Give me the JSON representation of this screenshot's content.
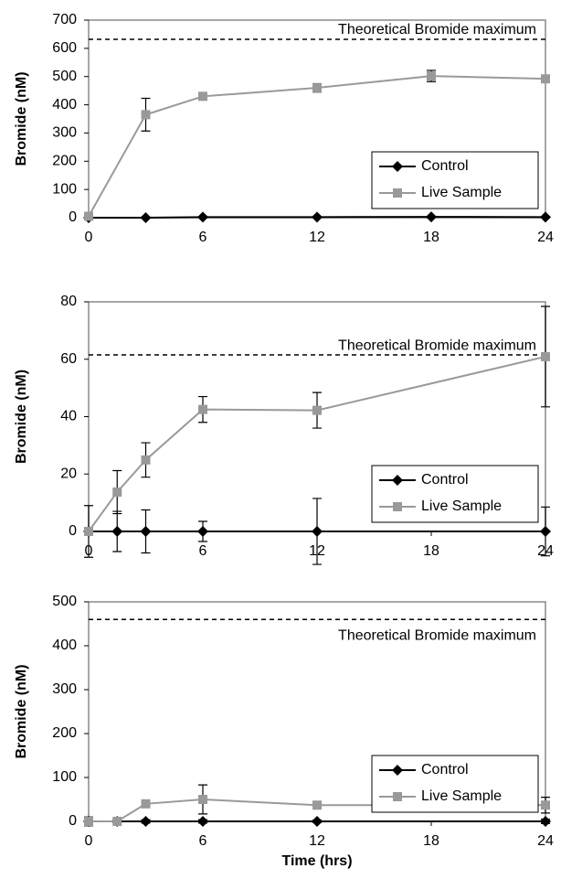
{
  "chart_data": [
    {
      "type": "line",
      "y_label": "Bromide (nM)",
      "annotation": "Theoretical Bromide maximum",
      "reference_line": 632,
      "xlim": [
        0,
        24
      ],
      "xticks": [
        0,
        6,
        12,
        18,
        24
      ],
      "ylim": [
        0,
        700
      ],
      "yticks": [
        0,
        100,
        200,
        300,
        400,
        500,
        600,
        700
      ],
      "legend": "lower right",
      "series": [
        {
          "name": "Control",
          "color": "#000000",
          "marker": "diamond",
          "x": [
            0,
            3,
            6,
            12,
            18,
            24
          ],
          "values": [
            0,
            0,
            2,
            2,
            3,
            2
          ],
          "errors": [
            2,
            2,
            2,
            2,
            2,
            2
          ]
        },
        {
          "name": "Live Sample",
          "color": "#999999",
          "marker": "square",
          "x": [
            0,
            3,
            6,
            12,
            18,
            24
          ],
          "values": [
            5,
            365,
            430,
            460,
            502,
            492
          ],
          "errors": [
            3,
            58,
            8,
            15,
            20,
            4
          ]
        }
      ]
    },
    {
      "type": "line",
      "y_label": "Bromide (nM)",
      "annotation": "Theoretical Bromide maximum",
      "reference_line": 61.5,
      "xlim": [
        0,
        24
      ],
      "xticks": [
        0,
        6,
        12,
        18,
        24
      ],
      "ylim": [
        0,
        80
      ],
      "yticks": [
        0,
        20,
        40,
        60,
        80
      ],
      "legend": "lower right",
      "series": [
        {
          "name": "Control",
          "color": "#000000",
          "marker": "diamond",
          "x": [
            0,
            1.5,
            3,
            6,
            12,
            24
          ],
          "values": [
            0,
            0,
            0,
            0,
            0,
            0
          ],
          "errors": [
            9,
            7,
            7.5,
            3.5,
            11.5,
            8.5
          ]
        },
        {
          "name": "Live Sample",
          "color": "#999999",
          "marker": "square",
          "x": [
            0,
            1.5,
            3,
            6,
            12,
            24
          ],
          "values": [
            0,
            13.7,
            24.9,
            42.5,
            42.2,
            60.9
          ],
          "errors": [
            0.5,
            7.5,
            6,
            4.5,
            6.2,
            17.5
          ]
        }
      ]
    },
    {
      "type": "line",
      "y_label": "Bromide (nM)",
      "x_label": "Time (hrs)",
      "annotation": "Theoretical Bromide maximum",
      "reference_line": 460,
      "xlim": [
        0,
        24
      ],
      "xticks": [
        0,
        6,
        12,
        18,
        24
      ],
      "ylim": [
        0,
        500
      ],
      "yticks": [
        0,
        100,
        200,
        300,
        400,
        500
      ],
      "legend": "lower right",
      "series": [
        {
          "name": "Control",
          "color": "#000000",
          "marker": "diamond",
          "x": [
            0,
            1.5,
            3,
            6,
            12,
            24
          ],
          "values": [
            0,
            0,
            0,
            0,
            0,
            0
          ],
          "errors": [
            10,
            3,
            4,
            4,
            3,
            5
          ]
        },
        {
          "name": "Live Sample",
          "color": "#999999",
          "marker": "square",
          "x": [
            0,
            1.5,
            3,
            6,
            12,
            24
          ],
          "values": [
            0,
            0,
            40,
            50,
            37,
            37
          ],
          "errors": [
            3,
            2,
            8,
            33,
            6,
            18
          ]
        }
      ]
    }
  ]
}
